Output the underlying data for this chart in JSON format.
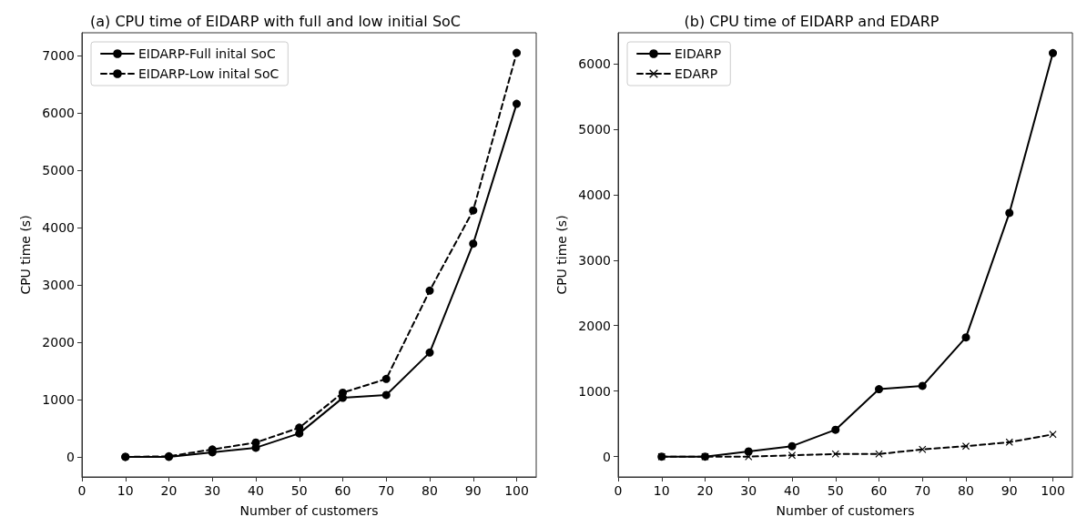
{
  "chart_data": [
    {
      "type": "line",
      "title": "(a) CPU time of EIDARP with full and low initial SoC",
      "xlabel": "Number of customers",
      "ylabel": "CPU time (s)",
      "x": [
        10,
        20,
        30,
        40,
        50,
        60,
        70,
        80,
        90,
        100
      ],
      "series": [
        {
          "name": "EIDARP-Full inital SoC",
          "color": "#000000",
          "marker": "circle",
          "line_style": "solid",
          "values": [
            0,
            0,
            80,
            160,
            410,
            1030,
            1080,
            1820,
            3720,
            6160
          ]
        },
        {
          "name": "EIDARP-Low inital SoC",
          "color": "#000000",
          "marker": "circle",
          "line_style": "dashed",
          "values": [
            0,
            10,
            130,
            250,
            510,
            1120,
            1360,
            2900,
            4300,
            7050
          ]
        }
      ],
      "xlim": [
        0,
        104.5
      ],
      "xticks": [
        0,
        10,
        20,
        30,
        40,
        50,
        60,
        70,
        80,
        90,
        100
      ],
      "ylim": [
        -350,
        7400
      ],
      "yticks": [
        0,
        1000,
        2000,
        3000,
        4000,
        5000,
        6000,
        7000
      ],
      "grid": false,
      "legend": "top left"
    },
    {
      "type": "line",
      "title": "(b) CPU time of EIDARP and EDARP",
      "xlabel": "Number of customers",
      "ylabel": "CPU time (s)",
      "x": [
        10,
        20,
        30,
        40,
        50,
        60,
        70,
        80,
        90,
        100
      ],
      "series": [
        {
          "name": "EIDARP",
          "color": "#000000",
          "marker": "circle",
          "line_style": "solid",
          "values": [
            0,
            0,
            80,
            160,
            410,
            1030,
            1080,
            1820,
            3720,
            6160
          ]
        },
        {
          "name": "EDARP",
          "color": "#000000",
          "marker": "cross",
          "line_style": "dashed",
          "values": [
            0,
            0,
            0,
            20,
            40,
            40,
            110,
            160,
            220,
            340
          ]
        }
      ],
      "xlim": [
        0,
        104.5
      ],
      "xticks": [
        0,
        10,
        20,
        30,
        40,
        50,
        60,
        70,
        80,
        90,
        100
      ],
      "ylim": [
        -310,
        6470
      ],
      "yticks": [
        0,
        1000,
        2000,
        3000,
        4000,
        5000,
        6000
      ],
      "grid": false,
      "legend": "top left"
    }
  ]
}
